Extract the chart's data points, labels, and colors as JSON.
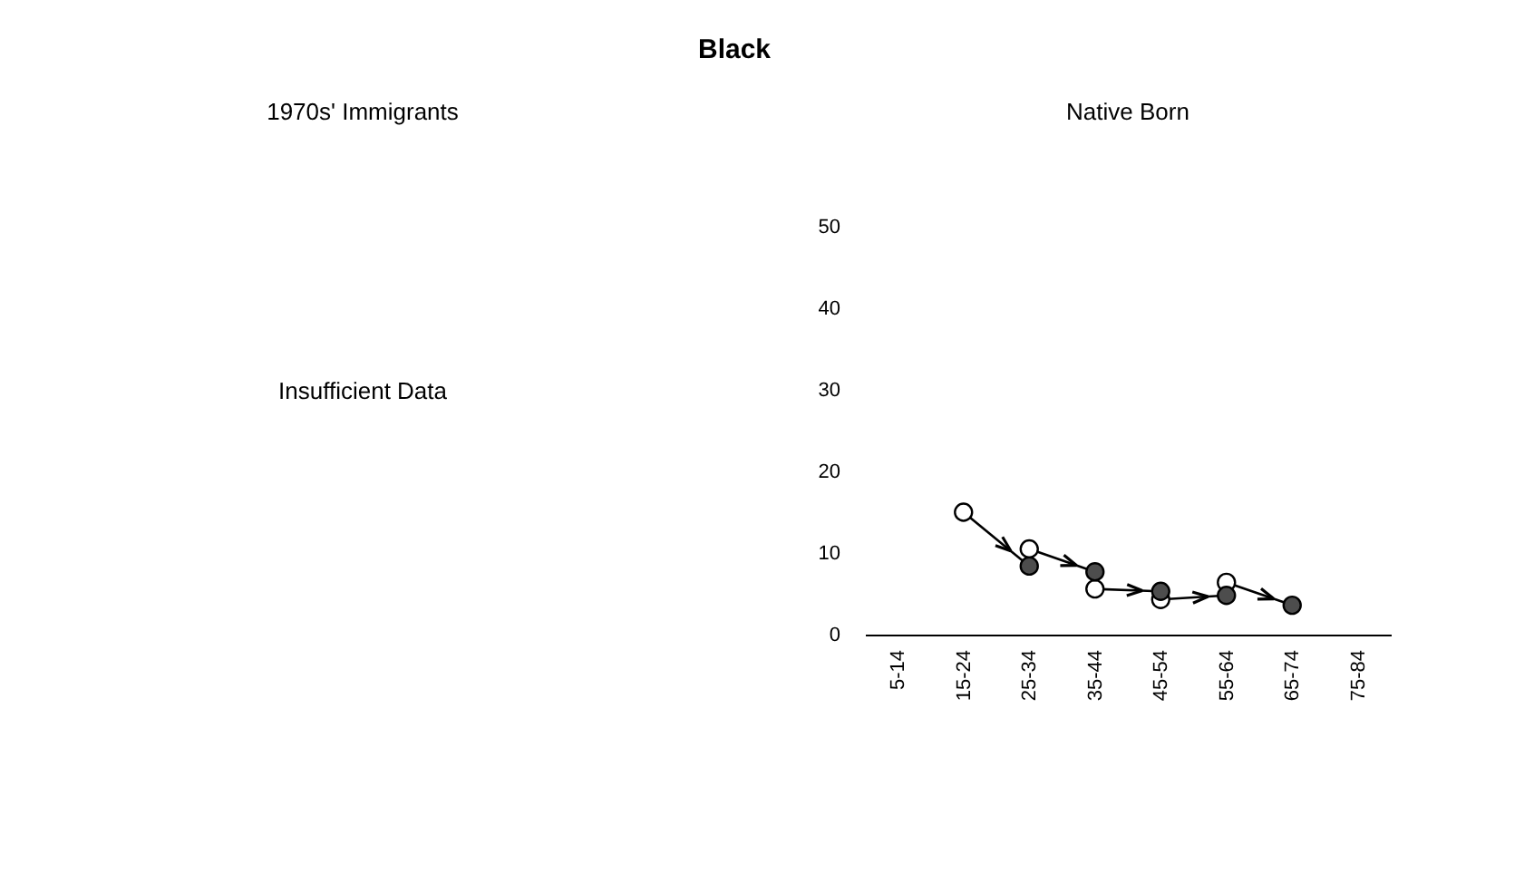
{
  "chart_data": [
    {
      "type": "other",
      "title": "Black"
    },
    {
      "type": "other",
      "title": "1970s' Immigrants",
      "annotations": [
        "Insufficient Data"
      ]
    },
    {
      "type": "scatter",
      "title": "Native Born",
      "categories": [
        "5-14",
        "15-24",
        "25-34",
        "35-44",
        "45-54",
        "55-64",
        "65-74",
        "75-84"
      ],
      "series": [
        {
          "color": "#ffffff",
          "values": [
            null,
            15,
            10.5,
            5.6,
            4.3,
            6.4,
            null,
            null
          ]
        },
        {
          "color": "#4d4d4d",
          "values": [
            null,
            null,
            8.4,
            7.7,
            5.3,
            4.8,
            3.6,
            null
          ]
        }
      ],
      "ylim": [
        0,
        50
      ],
      "yticks": [
        0,
        10,
        20,
        30,
        40,
        50
      ],
      "marker": "circle",
      "grid": false,
      "legend": false
    }
  ]
}
